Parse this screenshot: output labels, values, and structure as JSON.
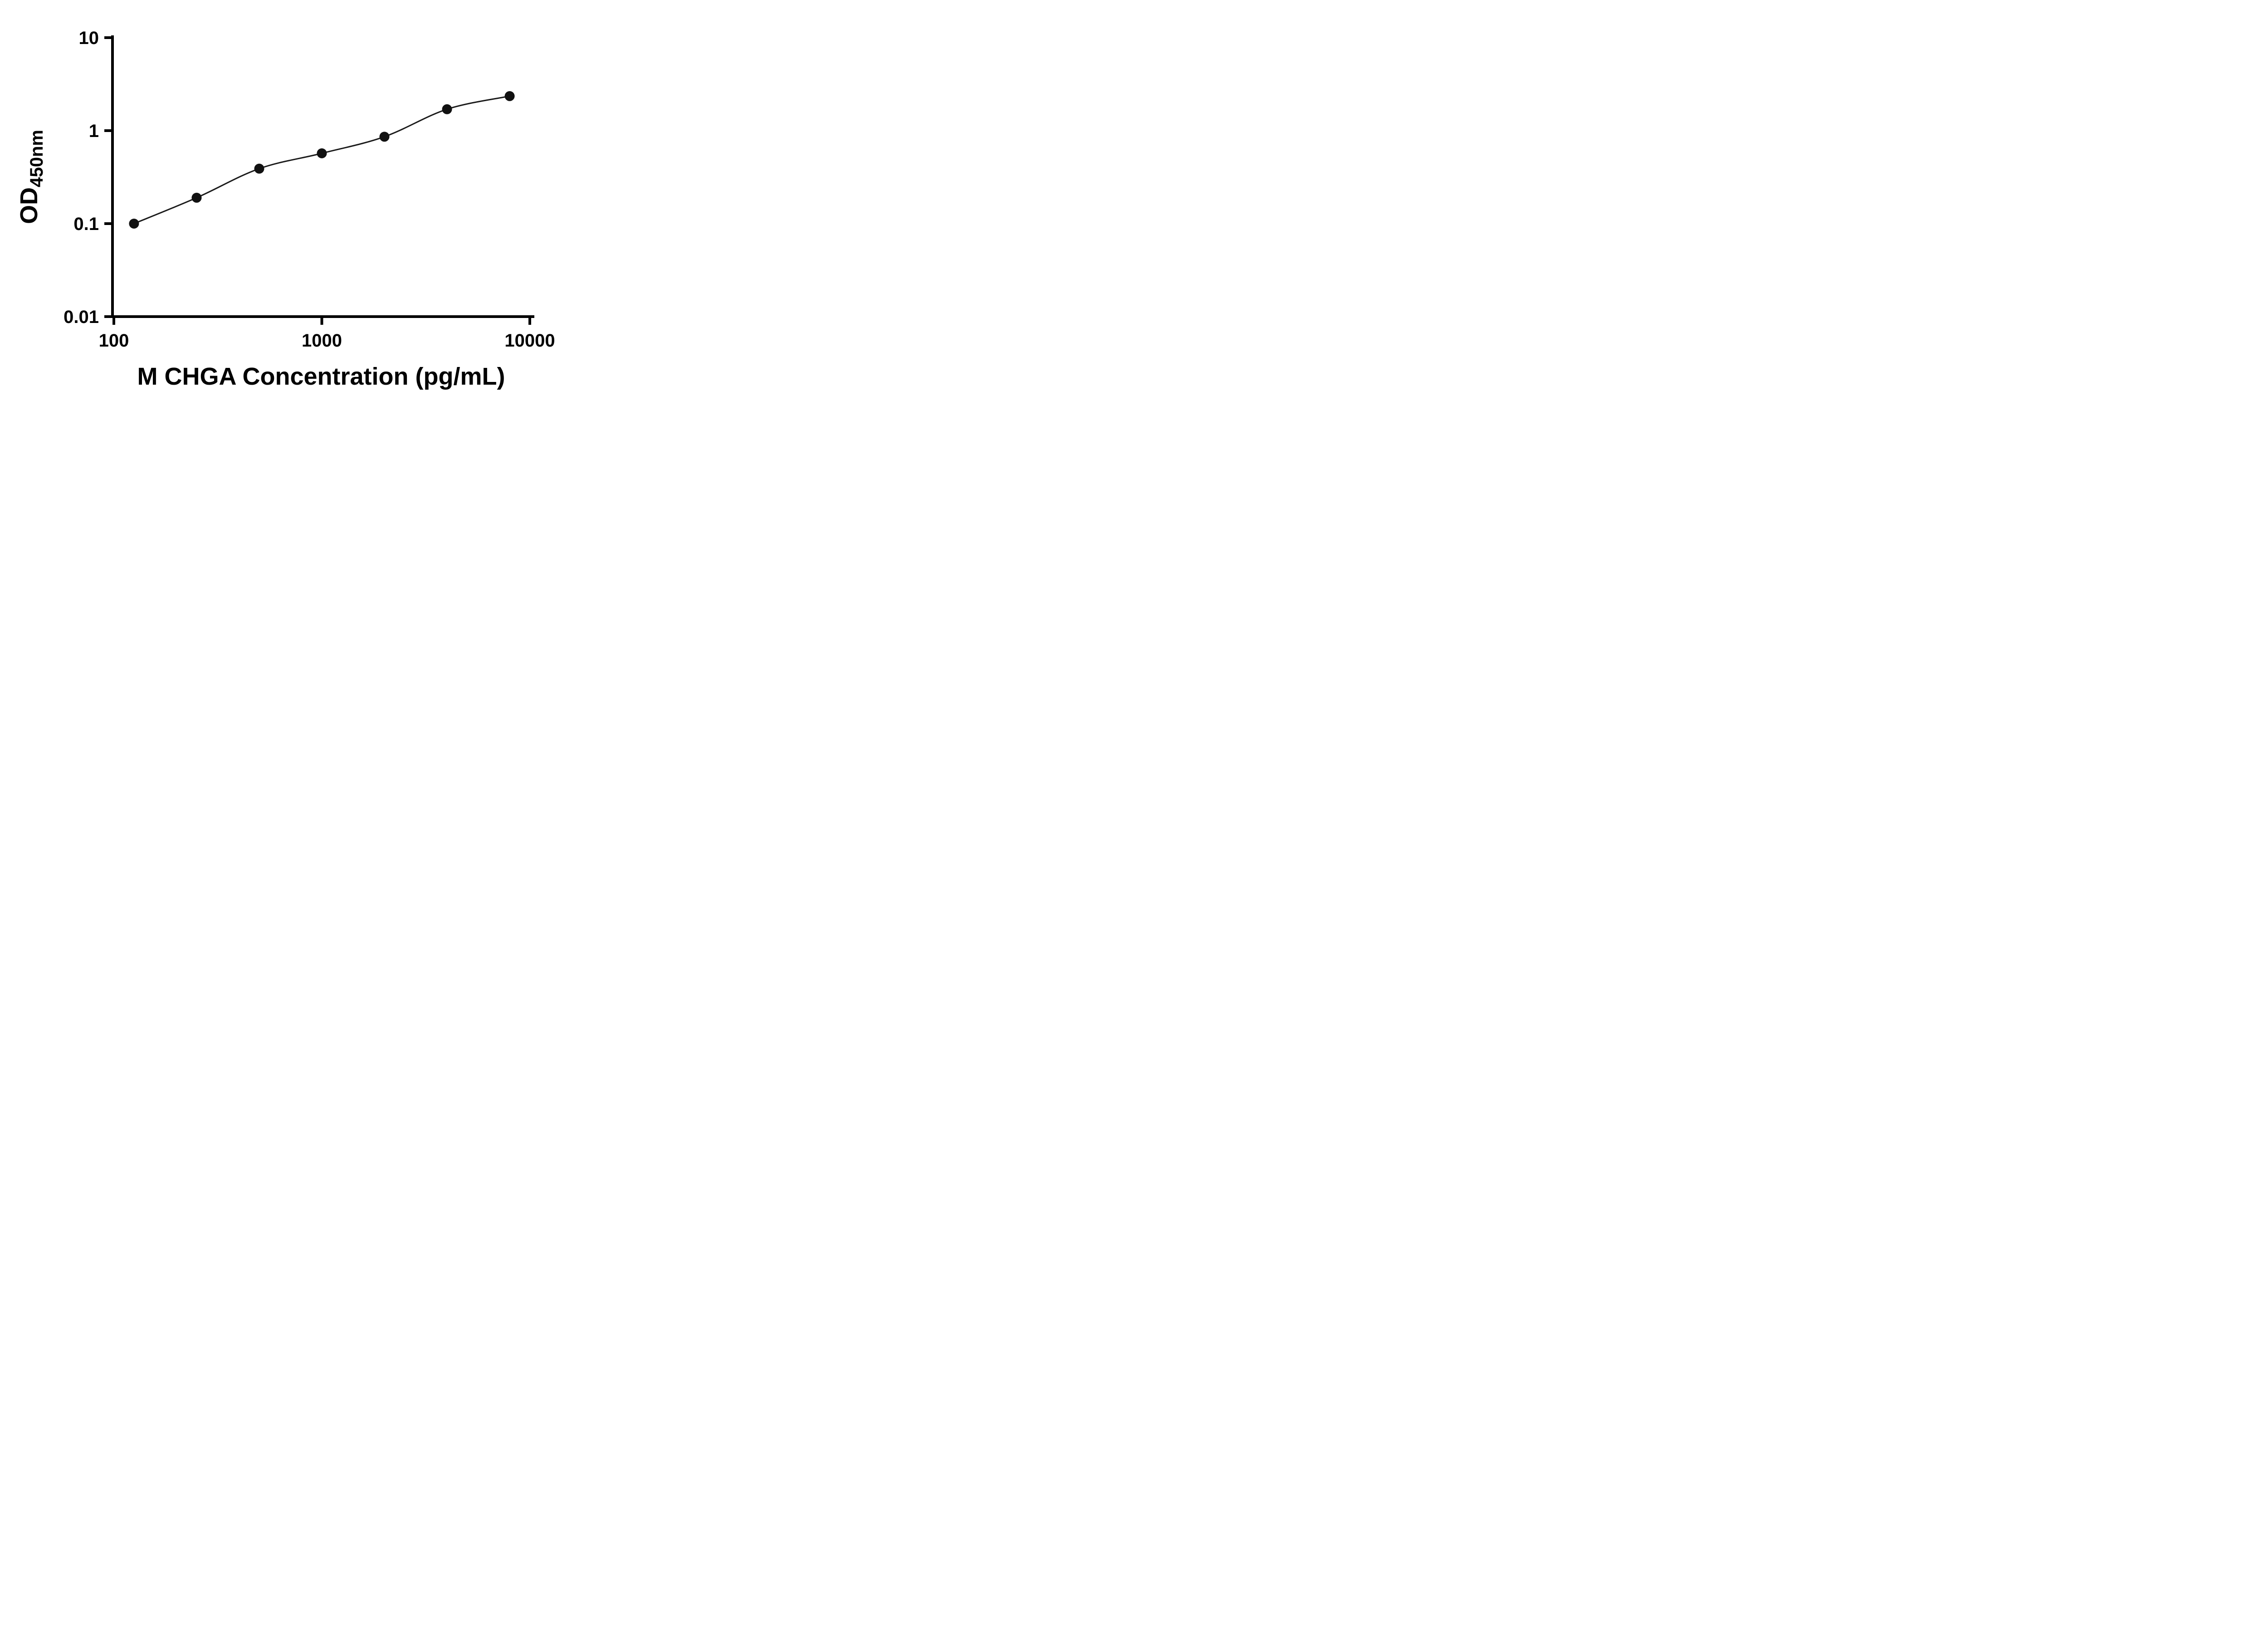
{
  "chart_data": {
    "type": "scatter",
    "subtype": "elisa-standard-curve",
    "title": "",
    "xlabel": "M CHGA Concentration (pg/mL)",
    "ylabel": "OD",
    "ylabel_subscript": "450nm",
    "x_scale": "log10",
    "y_scale": "log10",
    "xlim": [
      100,
      10000
    ],
    "ylim": [
      0.01,
      10
    ],
    "x_ticks": [
      "100",
      "1000",
      "10000"
    ],
    "y_ticks": [
      "0.01",
      "0.1",
      "1",
      "10"
    ],
    "points": [
      {
        "x": 125,
        "y": 0.1
      },
      {
        "x": 250,
        "y": 0.19
      },
      {
        "x": 500,
        "y": 0.39
      },
      {
        "x": 1000,
        "y": 0.57
      },
      {
        "x": 2000,
        "y": 0.86
      },
      {
        "x": 4000,
        "y": 1.7
      },
      {
        "x": 8000,
        "y": 2.35
      }
    ],
    "marker": {
      "shape": "filled-circle",
      "color": "#111111"
    },
    "curve": {
      "style": "smooth-fit-through-points",
      "color": "#1a1a1a"
    },
    "legend": "none",
    "grid": false,
    "background": "#ffffff",
    "axis_color": "#000000"
  }
}
